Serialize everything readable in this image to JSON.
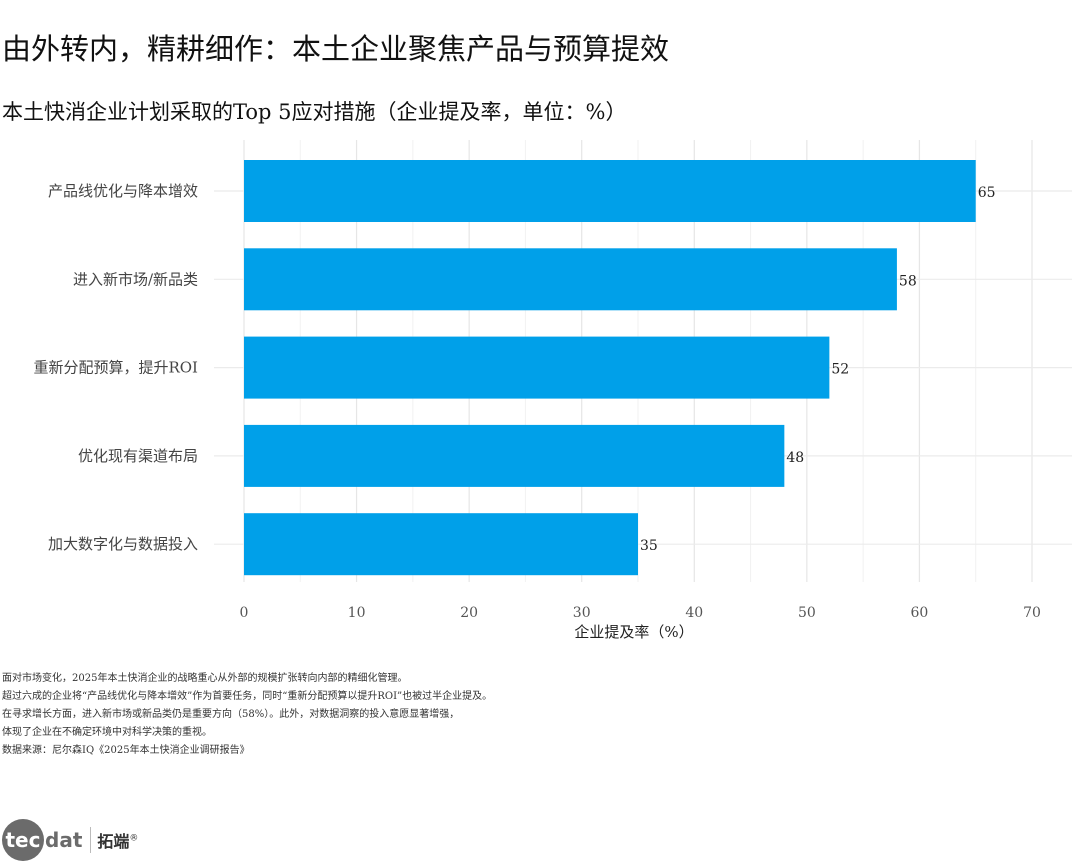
{
  "title": "由外转内，精耕细作：本土企业聚焦产品与预算提效",
  "subtitle": "本土快消企业计划采取的Top 5应对措施（企业提及率，单位：%）",
  "chart_data": {
    "type": "bar",
    "orientation": "horizontal",
    "categories": [
      "产品线优化与降本增效",
      "进入新市场/新品类",
      "重新分配预算，提升ROI",
      "优化现有渠道布局",
      "加大数字化与数据投入"
    ],
    "values": [
      65,
      58,
      52,
      48,
      35
    ],
    "value_labels": [
      "65",
      "58",
      "52",
      "48",
      "35"
    ],
    "xlabel": "企业提及率（%）",
    "ylabel": "",
    "xlim": [
      0,
      70
    ],
    "xticks": [
      0,
      10,
      20,
      30,
      40,
      50,
      60,
      70
    ],
    "xtick_labels": [
      "0",
      "10",
      "20",
      "30",
      "40",
      "50",
      "60",
      "70"
    ],
    "bar_color": "#00a0e9",
    "grid": true,
    "legend": "none"
  },
  "caption": [
    "面对市场变化，2025年本土快消企业的战略重心从外部的规模扩张转向内部的精细化管理。",
    "超过六成的企业将“产品线优化与降本增效”作为首要任务，同时“重新分配预算以提升ROI”也被过半企业提及。",
    "在寻求增长方面，进入新市场或新品类仍是重要方向（58%）。此外，对数据洞察的投入意愿显著增强，",
    "体现了企业在不确定环境中对科学决策的重视。",
    "数据来源：尼尔森IQ《2025年本土快消企业调研报告》"
  ],
  "logo": {
    "circle_text": "tec",
    "word_text": "dat",
    "cn_text": "拓端",
    "reg_mark": "®",
    "circle_color": "#6b6b6b"
  }
}
